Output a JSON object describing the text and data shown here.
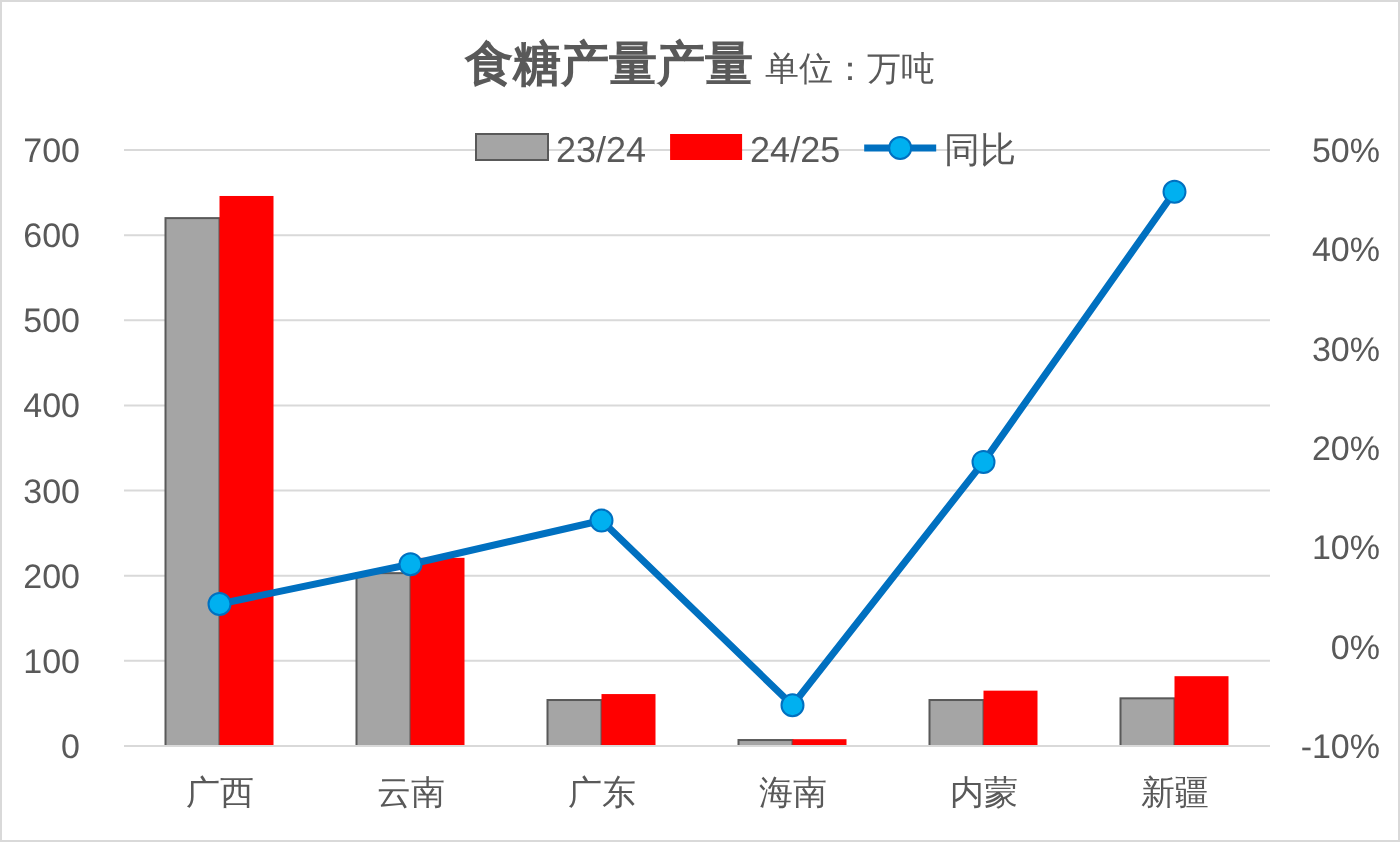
{
  "chart_data": {
    "type": "bar",
    "title": "食糖产量产量",
    "subtitle": "单位：万吨",
    "categories": [
      "广西",
      "云南",
      "广东",
      "海南",
      "内蒙",
      "新疆"
    ],
    "series": [
      {
        "name": "23/24",
        "color": "#a5a5a5",
        "values": [
          620,
          203,
          54,
          7,
          54,
          56
        ]
      },
      {
        "name": "24/25",
        "color": "#ff0000",
        "values": [
          646,
          221,
          61,
          8,
          65,
          82
        ]
      },
      {
        "name": "同比",
        "type": "line",
        "axis": "y2",
        "color": "#0070c0",
        "marker": "circle",
        "values": [
          4.3,
          8.3,
          12.7,
          -5.9,
          18.6,
          45.8
        ]
      }
    ],
    "ylim": [
      0,
      700
    ],
    "yticks": [
      0,
      100,
      200,
      300,
      400,
      500,
      600,
      700
    ],
    "y2lim": [
      -10,
      50
    ],
    "y2ticks": [
      {
        "value": -10,
        "label": "-10%"
      },
      {
        "value": 0,
        "label": "0%"
      },
      {
        "value": 10,
        "label": "10%"
      },
      {
        "value": 20,
        "label": "20%"
      },
      {
        "value": 30,
        "label": "30%"
      },
      {
        "value": 40,
        "label": "40%"
      },
      {
        "value": 50,
        "label": "50%"
      }
    ],
    "grid": "y",
    "legend": "top"
  }
}
